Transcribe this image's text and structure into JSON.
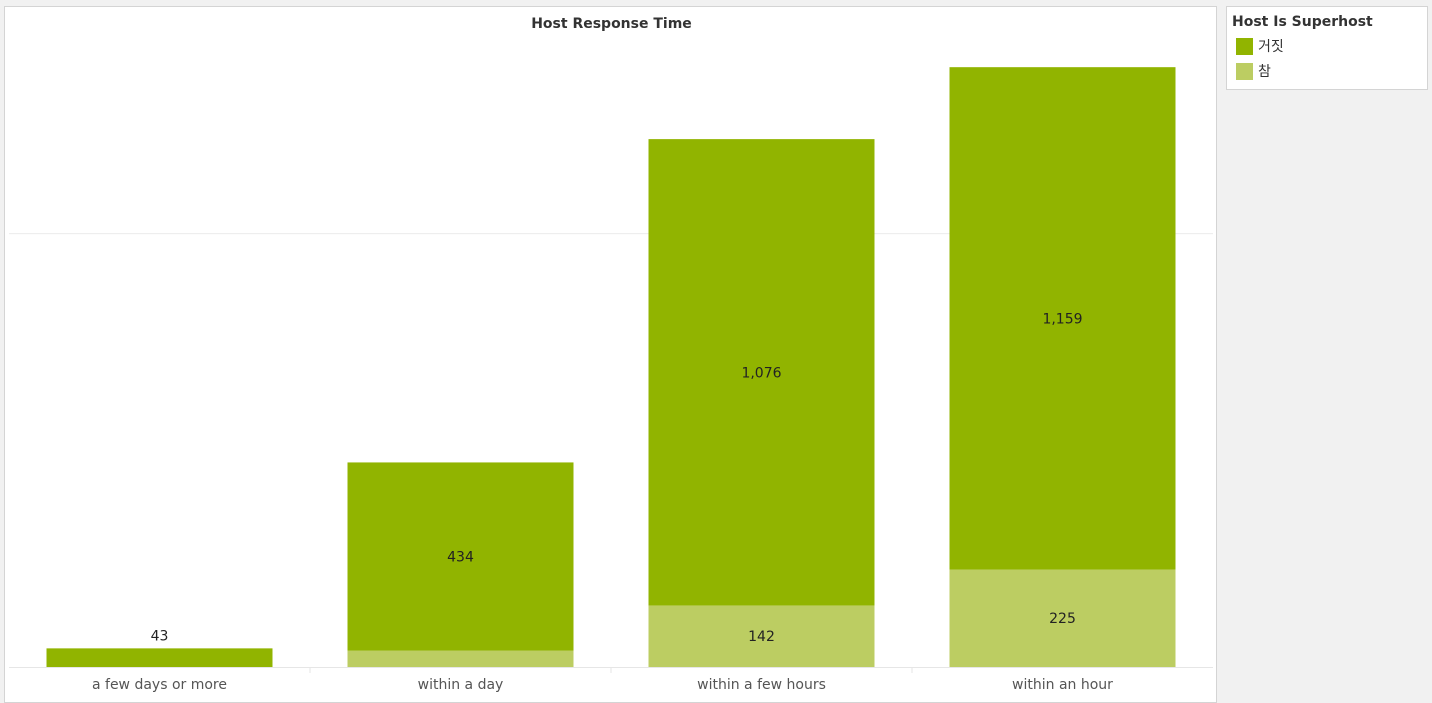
{
  "chart_data": {
    "type": "bar",
    "stacked": true,
    "title": "Host Response Time",
    "xlabel": "",
    "ylabel": "",
    "categories": [
      "a few days or more",
      "within a day",
      "within a few hours",
      "within an hour"
    ],
    "series": [
      {
        "name": "참",
        "color": "#bccd62",
        "values": [
          0,
          38,
          142,
          225
        ],
        "labels": [
          "",
          "",
          "142",
          "225"
        ]
      },
      {
        "name": "거짓",
        "color": "#91b400",
        "values": [
          43,
          434,
          1076,
          1159
        ],
        "labels": [
          "43",
          "434",
          "1,076",
          "1,159"
        ]
      }
    ],
    "ylim": [
      0,
      1390
    ],
    "gridlines": [
      1000
    ],
    "y_axis_visible": false,
    "legend_position": "right"
  },
  "legend": {
    "title": "Host Is Superhost",
    "items": [
      {
        "label": "거짓",
        "color": "#91b400"
      },
      {
        "label": "참",
        "color": "#bccd62"
      }
    ]
  }
}
